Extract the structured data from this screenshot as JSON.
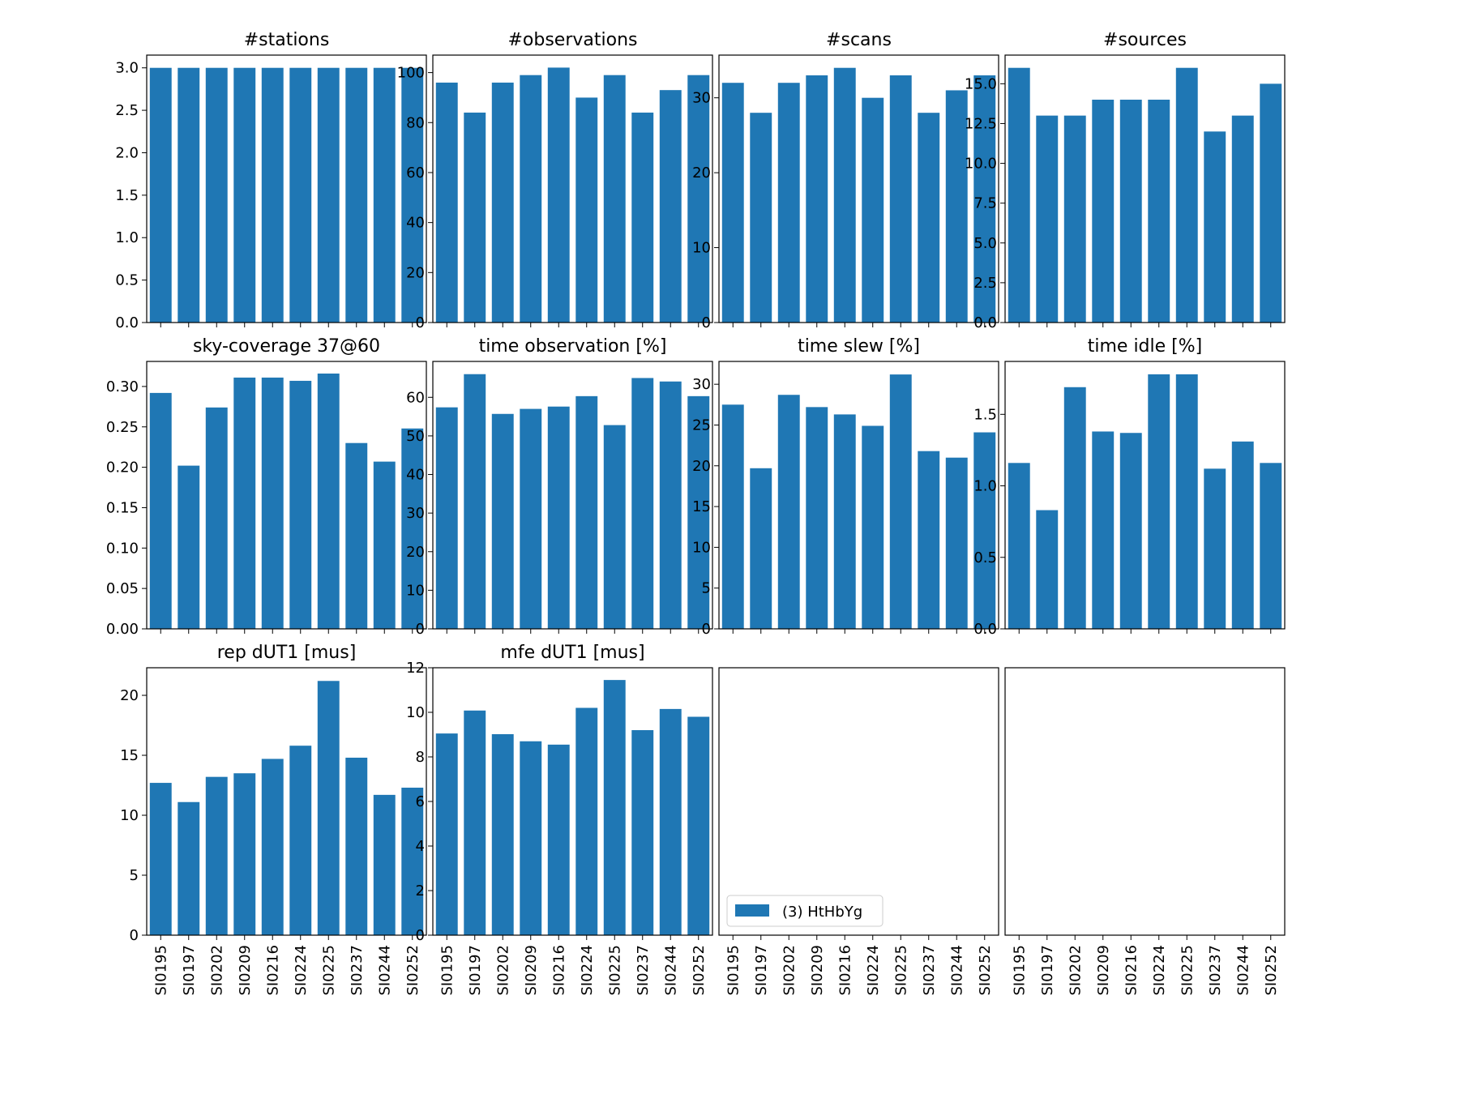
{
  "chart_data": {
    "type": "bar",
    "layout": "3x4 grid of small-multiple bar charts",
    "categories": [
      "SI0195",
      "SI0197",
      "SI0202",
      "SI0209",
      "SI0216",
      "SI0224",
      "SI0225",
      "SI0237",
      "SI0244",
      "SI0252"
    ],
    "bar_color": "#1f77b4",
    "panels": [
      {
        "title": "#stations",
        "values": [
          3,
          3,
          3,
          3,
          3,
          3,
          3,
          3,
          3,
          3
        ],
        "ylim": [
          0,
          3.15
        ],
        "yticks": [
          0.0,
          0.5,
          1.0,
          1.5,
          2.0,
          2.5,
          3.0
        ],
        "ytick_labels": [
          "0.0",
          "0.5",
          "1.0",
          "1.5",
          "2.0",
          "2.5",
          "3.0"
        ]
      },
      {
        "title": "#observations",
        "values": [
          96,
          84,
          96,
          99,
          102,
          90,
          99,
          84,
          93,
          99
        ],
        "ylim": [
          0,
          107
        ],
        "yticks": [
          0,
          20,
          40,
          60,
          80,
          100
        ],
        "ytick_labels": [
          "0",
          "20",
          "40",
          "60",
          "80",
          "100"
        ]
      },
      {
        "title": "#scans",
        "values": [
          32,
          28,
          32,
          33,
          34,
          30,
          33,
          28,
          31,
          33
        ],
        "ylim": [
          0,
          35.7
        ],
        "yticks": [
          0,
          10,
          20,
          30
        ],
        "ytick_labels": [
          "0",
          "10",
          "20",
          "30"
        ]
      },
      {
        "title": "#sources",
        "values": [
          16,
          13,
          13,
          14,
          14,
          14,
          16,
          12,
          13,
          15
        ],
        "ylim": [
          0,
          16.8
        ],
        "yticks": [
          0.0,
          2.5,
          5.0,
          7.5,
          10.0,
          12.5,
          15.0
        ],
        "ytick_labels": [
          "0.0",
          "2.5",
          "5.0",
          "7.5",
          "10.0",
          "12.5",
          "15.0"
        ]
      },
      {
        "title": "sky-coverage 37@60",
        "values": [
          0.292,
          0.202,
          0.274,
          0.311,
          0.311,
          0.307,
          0.316,
          0.23,
          0.207,
          0.248
        ],
        "ylim": [
          0,
          0.331
        ],
        "yticks": [
          0.0,
          0.05,
          0.1,
          0.15,
          0.2,
          0.25,
          0.3
        ],
        "ytick_labels": [
          "0.00",
          "0.05",
          "0.10",
          "0.15",
          "0.20",
          "0.25",
          "0.30"
        ]
      },
      {
        "title": "time observation [%]",
        "values": [
          57.4,
          66,
          55.7,
          57,
          57.6,
          60.3,
          52.8,
          65,
          64.1,
          60.3
        ],
        "ylim": [
          0,
          69.3
        ],
        "yticks": [
          0,
          10,
          20,
          30,
          40,
          50,
          60
        ],
        "ytick_labels": [
          "0",
          "10",
          "20",
          "30",
          "40",
          "50",
          "60"
        ]
      },
      {
        "title": "time slew [%]",
        "values": [
          27.5,
          19.7,
          28.7,
          27.2,
          26.3,
          24.9,
          31.2,
          21.8,
          21,
          24.1
        ],
        "ylim": [
          0,
          32.8
        ],
        "yticks": [
          0,
          5,
          10,
          15,
          20,
          25,
          30
        ],
        "ytick_labels": [
          "0",
          "5",
          "10",
          "15",
          "20",
          "25",
          "30"
        ]
      },
      {
        "title": "time idle [%]",
        "values": [
          1.16,
          0.83,
          1.69,
          1.38,
          1.37,
          1.78,
          1.78,
          1.12,
          1.31,
          1.16
        ],
        "ylim": [
          0,
          1.87
        ],
        "yticks": [
          0.0,
          0.5,
          1.0,
          1.5
        ],
        "ytick_labels": [
          "0.0",
          "0.5",
          "1.0",
          "1.5"
        ]
      },
      {
        "title": "rep dUT1 [mus]",
        "values": [
          12.7,
          11.1,
          13.2,
          13.5,
          14.7,
          15.8,
          21.2,
          14.8,
          11.7,
          12.3
        ],
        "ylim": [
          0,
          22.3
        ],
        "yticks": [
          0,
          5,
          10,
          15,
          20
        ],
        "ytick_labels": [
          "0",
          "5",
          "10",
          "15",
          "20"
        ]
      },
      {
        "title": "mfe dUT1 [mus]",
        "values": [
          9.05,
          10.08,
          9.02,
          8.7,
          8.55,
          10.2,
          11.45,
          9.2,
          10.15,
          9.8
        ],
        "ylim": [
          0,
          12
        ],
        "yticks": [
          0,
          2,
          4,
          6,
          8,
          10,
          12
        ],
        "ytick_labels": [
          "0",
          "2",
          "4",
          "6",
          "8",
          "10",
          "12"
        ]
      },
      {
        "title": "",
        "values": [],
        "empty": true,
        "legend": "(3) HtHbYg"
      },
      {
        "title": "",
        "values": [],
        "empty": true
      }
    ],
    "grid": false,
    "legend": {
      "position": "lower-left",
      "panel": "row 3, column 3",
      "entries": [
        "(3) HtHbYg"
      ]
    }
  }
}
